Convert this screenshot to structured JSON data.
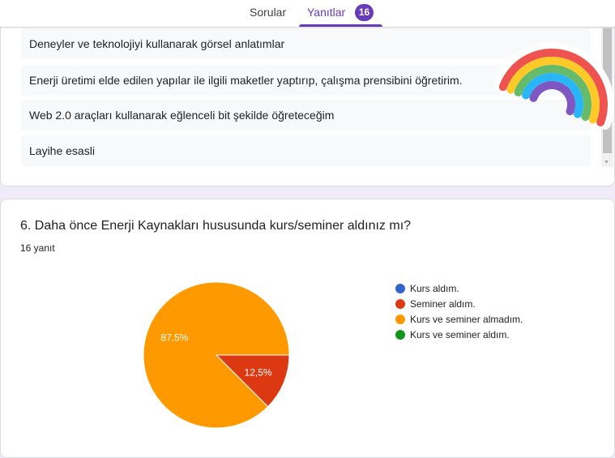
{
  "tabs": {
    "questions": "Sorular",
    "responses": "Yanıtlar",
    "responses_count": "16"
  },
  "answers": [
    "Deneyler ve teknolojiyi kullanarak görsel anlatımlar",
    "Enerji üretimi elde edilen yapılar ile ilgili maketler yaptırıp, çalışma prensibini öğretirim.",
    "Web 2.0 araçları kullanarak eğlenceli bit şekilde öğreteceğim",
    "Layihe esasli"
  ],
  "question": {
    "title": "6. Daha önce Enerji Kaynakları hususunda kurs/seminer aldınız mı?",
    "response_count": "16 yanıt"
  },
  "chart_data": {
    "type": "pie",
    "categories": [
      "Kurs aldım.",
      "Seminer aldım.",
      "Kurs ve seminer almadım.",
      "Kurs ve seminer aldım."
    ],
    "values": [
      0,
      12.5,
      87.5,
      0
    ],
    "colors": [
      "#3366cc",
      "#dc3912",
      "#ff9900",
      "#109618"
    ],
    "data_labels": [
      "",
      "12,5%",
      "87,5%",
      ""
    ],
    "legend_position": "right"
  }
}
